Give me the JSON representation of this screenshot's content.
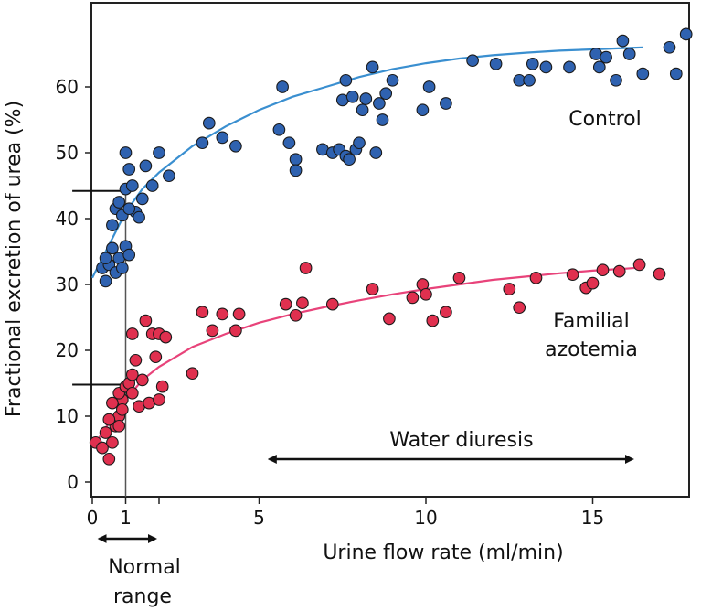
{
  "chart_data": {
    "type": "scatter",
    "xlabel": "Urine flow rate (ml/min)",
    "ylabel": "Fractional excretion of urea (%)",
    "xlim": [
      0,
      17
    ],
    "ylim": [
      0,
      70
    ],
    "grid": false,
    "x_ticks": [
      {
        "value": 0,
        "label": "0"
      },
      {
        "value": 1,
        "label": "1"
      },
      {
        "value": 2,
        "label": ""
      },
      {
        "value": 5,
        "label": "5"
      },
      {
        "value": 10,
        "label": "10"
      },
      {
        "value": 15,
        "label": "15"
      }
    ],
    "y_ticks": [
      {
        "value": 0,
        "label": "0"
      },
      {
        "value": 10,
        "label": "10"
      },
      {
        "value": 20,
        "label": "20"
      },
      {
        "value": 30,
        "label": "30"
      },
      {
        "value": 40,
        "label": "40"
      },
      {
        "value": 50,
        "label": "50"
      },
      {
        "value": 60,
        "label": "60"
      }
    ],
    "series": [
      {
        "name": "Control",
        "color": "#2f62b0",
        "curve_color": "#3a8fd0",
        "curve": [
          [
            0,
            31
          ],
          [
            0.5,
            36
          ],
          [
            1,
            41
          ],
          [
            1.5,
            44.5
          ],
          [
            2,
            47
          ],
          [
            3,
            51
          ],
          [
            4,
            54
          ],
          [
            5,
            56.5
          ],
          [
            6,
            58.5
          ],
          [
            7,
            60
          ],
          [
            8,
            61.5
          ],
          [
            9,
            62.7
          ],
          [
            10,
            63.6
          ],
          [
            11,
            64.3
          ],
          [
            12,
            64.8
          ],
          [
            13,
            65.2
          ],
          [
            14,
            65.5
          ],
          [
            15,
            65.7
          ],
          [
            16,
            65.9
          ],
          [
            16.5,
            66
          ]
        ],
        "points": [
          [
            0.3,
            32.5
          ],
          [
            0.4,
            30.5
          ],
          [
            0.5,
            33
          ],
          [
            0.6,
            35.5
          ],
          [
            0.7,
            31.8
          ],
          [
            0.8,
            34
          ],
          [
            0.9,
            32.5
          ],
          [
            0.4,
            34
          ],
          [
            0.6,
            39
          ],
          [
            0.7,
            41.5
          ],
          [
            0.8,
            42.5
          ],
          [
            1.0,
            35.8
          ],
          [
            1.1,
            34.5
          ],
          [
            0.9,
            40.5
          ],
          [
            1.0,
            44.5
          ],
          [
            1.1,
            47.5
          ],
          [
            1.0,
            50
          ],
          [
            1.2,
            45
          ],
          [
            1.3,
            41
          ],
          [
            1.4,
            40.2
          ],
          [
            1.5,
            43
          ],
          [
            1.6,
            48
          ],
          [
            1.8,
            45
          ],
          [
            2.0,
            50
          ],
          [
            2.3,
            46.5
          ],
          [
            1.1,
            41.5
          ],
          [
            3.3,
            51.5
          ],
          [
            3.5,
            54.5
          ],
          [
            3.9,
            52.3
          ],
          [
            4.3,
            51
          ],
          [
            5.6,
            53.5
          ],
          [
            5.7,
            60
          ],
          [
            5.9,
            51.5
          ],
          [
            6.1,
            49
          ],
          [
            6.1,
            47.3
          ],
          [
            6.9,
            50.5
          ],
          [
            7.2,
            50
          ],
          [
            7.4,
            50.5
          ],
          [
            7.6,
            49.5
          ],
          [
            7.7,
            49
          ],
          [
            7.9,
            50.5
          ],
          [
            8.0,
            51.5
          ],
          [
            7.5,
            58
          ],
          [
            7.6,
            61
          ],
          [
            7.8,
            58.5
          ],
          [
            8.1,
            56.5
          ],
          [
            8.2,
            58.2
          ],
          [
            8.4,
            63
          ],
          [
            8.5,
            50
          ],
          [
            8.6,
            57.5
          ],
          [
            8.7,
            55
          ],
          [
            8.8,
            59
          ],
          [
            9.0,
            61
          ],
          [
            9.9,
            56.5
          ],
          [
            10.1,
            60
          ],
          [
            10.6,
            57.5
          ],
          [
            11.4,
            64
          ],
          [
            12.1,
            63.5
          ],
          [
            12.8,
            61
          ],
          [
            13.1,
            61
          ],
          [
            13.2,
            63.5
          ],
          [
            13.6,
            63
          ],
          [
            14.3,
            63
          ],
          [
            15.1,
            65
          ],
          [
            15.2,
            63
          ],
          [
            15.4,
            64.5
          ],
          [
            15.7,
            61
          ],
          [
            15.9,
            67
          ],
          [
            16.1,
            65
          ],
          [
            16.5,
            62
          ],
          [
            17.3,
            66
          ],
          [
            17.5,
            62
          ],
          [
            17.8,
            68
          ]
        ],
        "label": "Control"
      },
      {
        "name": "Familial azotemia",
        "color": "#e0304f",
        "curve_color": "#e8437a",
        "curve": [
          [
            0,
            5.2
          ],
          [
            0.5,
            9
          ],
          [
            1,
            12.5
          ],
          [
            1.5,
            15.5
          ],
          [
            2,
            17.5
          ],
          [
            3,
            20.5
          ],
          [
            4,
            22.5
          ],
          [
            5,
            24.2
          ],
          [
            6,
            25.5
          ],
          [
            7,
            26.6
          ],
          [
            8,
            27.6
          ],
          [
            9,
            28.5
          ],
          [
            10,
            29.3
          ],
          [
            11,
            30
          ],
          [
            12,
            30.7
          ],
          [
            13,
            31.2
          ],
          [
            14,
            31.7
          ],
          [
            15,
            32.1
          ],
          [
            16,
            32.4
          ],
          [
            16.5,
            32.6
          ]
        ],
        "points": [
          [
            0.1,
            6
          ],
          [
            0.3,
            5.2
          ],
          [
            0.5,
            3.5
          ],
          [
            0.6,
            6
          ],
          [
            0.7,
            8.5
          ],
          [
            0.8,
            10
          ],
          [
            0.9,
            12.5
          ],
          [
            0.4,
            7.5
          ],
          [
            0.5,
            9.5
          ],
          [
            0.6,
            12
          ],
          [
            0.8,
            13.5
          ],
          [
            0.8,
            8.5
          ],
          [
            0.9,
            11
          ],
          [
            1.0,
            14.5
          ],
          [
            1.1,
            15
          ],
          [
            1.2,
            16.3
          ],
          [
            1.2,
            22.5
          ],
          [
            1.3,
            18.5
          ],
          [
            1.2,
            13.5
          ],
          [
            1.4,
            11.5
          ],
          [
            1.5,
            15.5
          ],
          [
            1.6,
            24.5
          ],
          [
            1.7,
            12
          ],
          [
            1.8,
            22.5
          ],
          [
            1.9,
            19
          ],
          [
            2.0,
            12.5
          ],
          [
            2.0,
            22.5
          ],
          [
            2.1,
            14.5
          ],
          [
            2.2,
            22
          ],
          [
            3.0,
            16.5
          ],
          [
            3.3,
            25.8
          ],
          [
            3.6,
            23
          ],
          [
            3.9,
            25.5
          ],
          [
            4.3,
            23
          ],
          [
            4.4,
            25.5
          ],
          [
            5.8,
            27
          ],
          [
            6.1,
            25.3
          ],
          [
            6.3,
            27.2
          ],
          [
            6.4,
            32.5
          ],
          [
            7.2,
            27
          ],
          [
            8.4,
            29.3
          ],
          [
            8.9,
            24.8
          ],
          [
            9.6,
            28
          ],
          [
            9.9,
            30
          ],
          [
            10.0,
            28.5
          ],
          [
            10.2,
            24.5
          ],
          [
            10.6,
            25.8
          ],
          [
            11.0,
            31
          ],
          [
            12.5,
            29.3
          ],
          [
            12.8,
            26.5
          ],
          [
            13.3,
            31
          ],
          [
            14.4,
            31.5
          ],
          [
            14.8,
            29.5
          ],
          [
            15.0,
            30.2
          ],
          [
            15.3,
            32.2
          ],
          [
            15.8,
            32
          ],
          [
            16.4,
            33
          ],
          [
            17.0,
            31.6
          ]
        ],
        "label": "Familial azotemia"
      }
    ],
    "annotations": {
      "control_label": "Control",
      "azotemia_label_line1": "Familial",
      "azotemia_label_line2": "azotemia",
      "water_diuresis": "Water diuresis",
      "water_diuresis_range": [
        5.2,
        16.3
      ],
      "normal_range_line1": "Normal",
      "normal_range_line2": "range",
      "normal_range_span": [
        0.1,
        2
      ],
      "reference_x": 1,
      "reference_control_y": 44.2,
      "reference_azotemia_y": 14.8
    }
  }
}
